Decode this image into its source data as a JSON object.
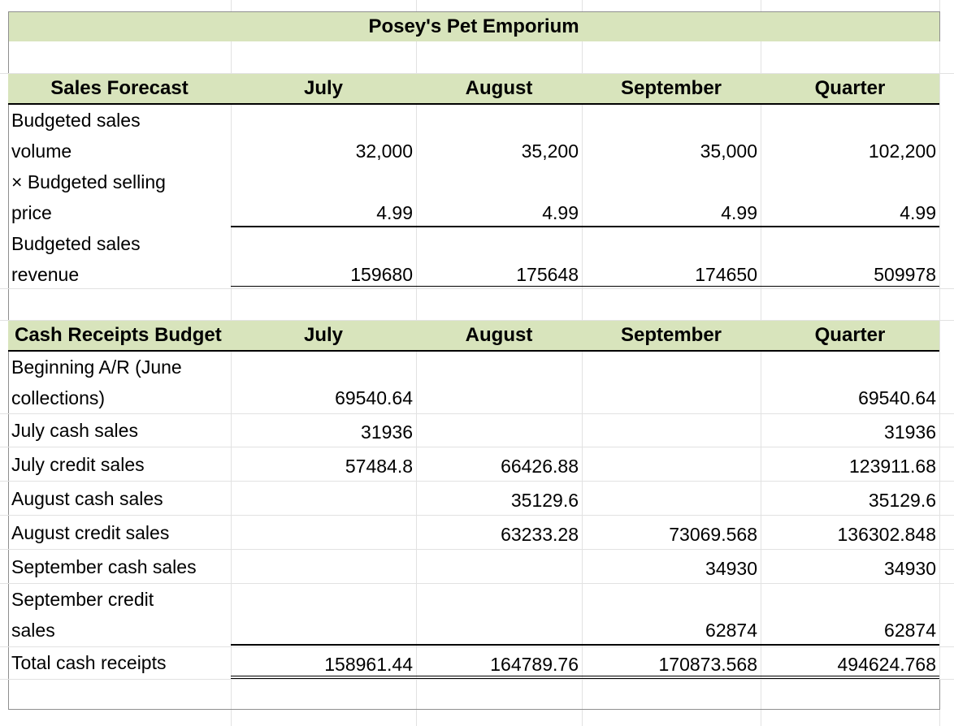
{
  "title": "Posey's Pet Emporium",
  "sales_forecast": {
    "header": [
      "Sales Forecast",
      "July",
      "August",
      "September",
      "Quarter"
    ],
    "rows": [
      {
        "label": [
          "Budgeted sales",
          "volume"
        ],
        "values": [
          "32,000",
          "35,200",
          "35,000",
          "102,200"
        ]
      },
      {
        "label": [
          "× Budgeted selling",
          "price"
        ],
        "values": [
          "4.99",
          "4.99",
          "4.99",
          "4.99"
        ]
      },
      {
        "label": [
          "Budgeted sales",
          "revenue"
        ],
        "values": [
          "159680",
          "175648",
          "174650",
          "509978"
        ]
      }
    ]
  },
  "cash_receipts": {
    "header": [
      "Cash Receipts Budget",
      "July",
      "August",
      "September",
      "Quarter"
    ],
    "rows": [
      {
        "label": [
          "Beginning A/R (June",
          "collections)"
        ],
        "values": [
          "69540.64",
          "",
          "",
          "69540.64"
        ]
      },
      {
        "label": [
          "July cash sales"
        ],
        "values": [
          "31936",
          "",
          "",
          "31936"
        ]
      },
      {
        "label": [
          "July credit sales"
        ],
        "values": [
          "57484.8",
          "66426.88",
          "",
          "123911.68"
        ]
      },
      {
        "label": [
          "August cash sales"
        ],
        "values": [
          "",
          "35129.6",
          "",
          "35129.6"
        ]
      },
      {
        "label": [
          "August credit sales"
        ],
        "values": [
          "",
          "63233.28",
          "73069.568",
          "136302.848"
        ]
      },
      {
        "label": [
          "September cash sales"
        ],
        "values": [
          "",
          "",
          "34930",
          "34930"
        ]
      },
      {
        "label": [
          "September credit",
          "sales"
        ],
        "values": [
          "",
          "",
          "62874",
          "62874"
        ]
      },
      {
        "label": [
          "Total cash receipts"
        ],
        "values": [
          "158961.44",
          "164789.76",
          "170873.568",
          "494624.768"
        ]
      }
    ]
  },
  "colors": {
    "header_band": "#d8e4bc",
    "gridline": "#e2e2e2",
    "rule": "#000000"
  }
}
